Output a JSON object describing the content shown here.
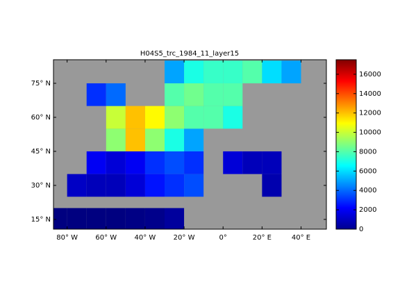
{
  "chart_data": {
    "type": "heatmap",
    "title": "H04S5_trc_1984_11_layer15",
    "colormap": "jet",
    "clim": [
      0,
      17500
    ],
    "cticks": [
      0,
      2000,
      4000,
      6000,
      8000,
      10000,
      12000,
      14000,
      16000
    ],
    "xlim": [
      -87,
      53
    ],
    "ylim": [
      10.7,
      85.4
    ],
    "xticks": [
      {
        "value": -80,
        "label": "80° W"
      },
      {
        "value": -60,
        "label": "60° W"
      },
      {
        "value": -40,
        "label": "40° W"
      },
      {
        "value": -20,
        "label": "20° W"
      },
      {
        "value": 0,
        "label": "0°"
      },
      {
        "value": 20,
        "label": "20° E"
      },
      {
        "value": 40,
        "label": "40° E"
      }
    ],
    "yticks": [
      {
        "value": 15,
        "label": "15° N"
      },
      {
        "value": 30,
        "label": "30° N"
      },
      {
        "value": 45,
        "label": "45° N"
      },
      {
        "value": 60,
        "label": "60° N"
      },
      {
        "value": 75,
        "label": "75° N"
      }
    ],
    "x": [
      -85,
      -75,
      -65,
      -55,
      -45,
      -35,
      -25,
      -15,
      -5,
      5,
      15,
      25,
      35,
      45
    ],
    "y": [
      15,
      30,
      40,
      50,
      60,
      70,
      80
    ],
    "values": [
      [
        0,
        0,
        0,
        0,
        100,
        200,
        500,
        null,
        null,
        null,
        null,
        null,
        null,
        null
      ],
      [
        null,
        1200,
        1000,
        1000,
        1500,
        2500,
        3000,
        3500,
        null,
        null,
        null,
        800,
        null,
        null
      ],
      [
        null,
        null,
        2000,
        1500,
        2000,
        3000,
        3500,
        3000,
        null,
        1500,
        1000,
        1000,
        null,
        null
      ],
      [
        null,
        null,
        null,
        9000,
        12000,
        9000,
        7000,
        5000,
        null,
        null,
        null,
        null,
        null,
        null
      ],
      [
        null,
        null,
        null,
        10000,
        12000,
        11000,
        9000,
        8000,
        8000,
        7000,
        null,
        null,
        null,
        null
      ],
      [
        null,
        null,
        3000,
        4000,
        null,
        null,
        8000,
        8500,
        8000,
        8000,
        null,
        null,
        null,
        null
      ],
      [
        null,
        null,
        null,
        null,
        null,
        null,
        5000,
        7000,
        7500,
        7500,
        8000,
        6000,
        5000,
        null
      ]
    ]
  }
}
